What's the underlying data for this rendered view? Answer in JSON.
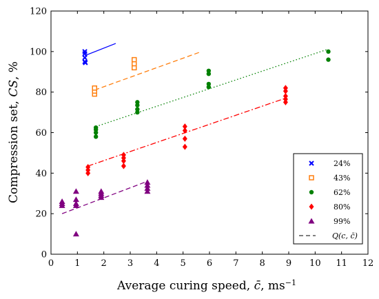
{
  "chart_data": {
    "type": "scatter",
    "xlabel_main": "Average curing speed, ",
    "xlabel_var": "c̄",
    "xlabel_unit": ", ms",
    "xlabel_exp": "−1",
    "ylabel_main": "Compression set, ",
    "ylabel_var": "CS",
    "ylabel_unit": ", %",
    "xlim": [
      0,
      12
    ],
    "ylim": [
      0,
      120
    ],
    "xticks": [
      0,
      1,
      2,
      3,
      4,
      5,
      6,
      7,
      8,
      9,
      10,
      11,
      12
    ],
    "yticks": [
      0,
      20,
      40,
      60,
      80,
      100,
      120
    ],
    "legend_position": "bottom-right",
    "series": [
      {
        "name": "24%",
        "marker": "x",
        "color": "#0000ff",
        "points": [
          [
            1.28,
            95
          ],
          [
            1.28,
            97
          ],
          [
            1.28,
            99
          ],
          [
            1.28,
            100
          ],
          [
            1.3,
            94.5
          ]
        ],
        "fit": {
          "x": [
            1.28,
            2.45
          ],
          "y": [
            98,
            104
          ],
          "dash": "solid"
        }
      },
      {
        "name": "43%",
        "marker": "square",
        "color": "#ff7f0e",
        "points": [
          [
            1.65,
            79
          ],
          [
            1.65,
            80.5
          ],
          [
            1.65,
            82
          ],
          [
            3.15,
            92
          ],
          [
            3.15,
            94
          ],
          [
            3.15,
            96
          ]
        ],
        "fit": {
          "x": [
            1.65,
            5.7
          ],
          "y": [
            81,
            100
          ],
          "dash": "dashed"
        }
      },
      {
        "name": "62%",
        "marker": "circle",
        "color": "#008000",
        "points": [
          [
            1.7,
            58
          ],
          [
            1.7,
            60
          ],
          [
            1.7,
            61.5
          ],
          [
            1.7,
            62.5
          ],
          [
            3.27,
            70
          ],
          [
            3.27,
            71.5
          ],
          [
            3.27,
            73.5
          ],
          [
            3.27,
            75
          ],
          [
            5.97,
            82.5
          ],
          [
            5.97,
            84
          ],
          [
            5.97,
            89
          ],
          [
            5.97,
            90.5
          ],
          [
            10.5,
            96
          ],
          [
            10.5,
            100
          ]
        ],
        "fit": {
          "x": [
            1.7,
            10.45
          ],
          "y": [
            63,
            101
          ],
          "dash": "dotted"
        }
      },
      {
        "name": "80%",
        "marker": "diamond",
        "color": "#ff0000",
        "points": [
          [
            1.4,
            40
          ],
          [
            1.4,
            41.5
          ],
          [
            1.4,
            43
          ],
          [
            2.75,
            43.5
          ],
          [
            2.75,
            46
          ],
          [
            2.75,
            47.5
          ],
          [
            2.75,
            49
          ],
          [
            5.07,
            53
          ],
          [
            5.07,
            57
          ],
          [
            5.07,
            61
          ],
          [
            5.07,
            63
          ],
          [
            8.88,
            75
          ],
          [
            8.88,
            76.5
          ],
          [
            8.88,
            78
          ],
          [
            8.88,
            80.5
          ],
          [
            8.88,
            82
          ]
        ],
        "fit": {
          "x": [
            1.4,
            8.88
          ],
          "y": [
            43.5,
            77
          ],
          "dash": "dashdot"
        }
      },
      {
        "name": "99%",
        "marker": "triangle",
        "color": "#800080",
        "points": [
          [
            0.42,
            24
          ],
          [
            0.42,
            25
          ],
          [
            0.42,
            26
          ],
          [
            0.95,
            10
          ],
          [
            0.95,
            24
          ],
          [
            0.95,
            25
          ],
          [
            0.95,
            27
          ],
          [
            0.95,
            31
          ],
          [
            1.9,
            28
          ],
          [
            1.9,
            29
          ],
          [
            1.9,
            30
          ],
          [
            1.9,
            31
          ],
          [
            3.65,
            31
          ],
          [
            3.65,
            32.5
          ],
          [
            3.65,
            34
          ],
          [
            3.65,
            35.5
          ]
        ],
        "fit": {
          "x": [
            0.42,
            3.65
          ],
          "y": [
            20,
            36
          ],
          "dash": "dashed"
        }
      }
    ],
    "legend_fit_label": "Q(c, c̄)"
  }
}
